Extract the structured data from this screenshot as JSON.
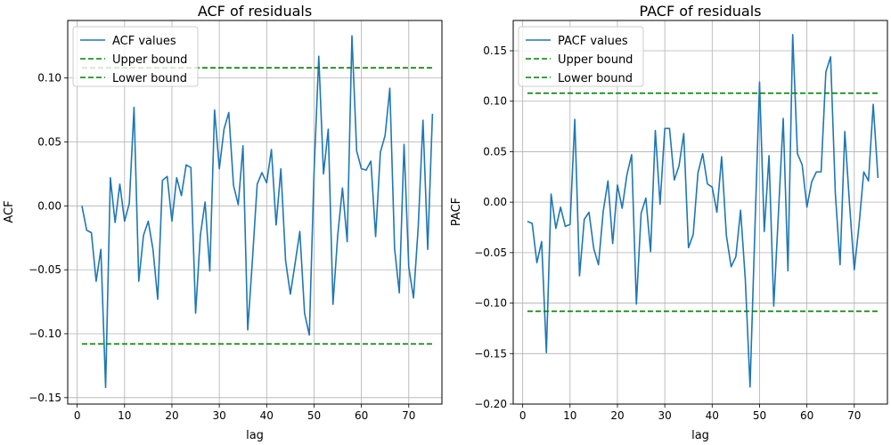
{
  "chart_data": [
    {
      "type": "line",
      "title": "ACF of residuals",
      "xlabel": "lag",
      "ylabel": "ACF",
      "xlim": [
        -2,
        77
      ],
      "ylim": [
        -0.155,
        0.145
      ],
      "xticks": [
        0,
        10,
        20,
        30,
        40,
        50,
        60,
        70
      ],
      "yticks": [
        -0.15,
        -0.1,
        -0.05,
        0.0,
        0.05,
        0.1
      ],
      "ytick_labels": [
        "−0.15",
        "−0.10",
        "−0.05",
        "0.00",
        "0.05",
        "0.10"
      ],
      "grid": true,
      "legend_position": "top-left",
      "series": [
        {
          "name": "ACF values",
          "color": "#1f77b4",
          "style": "solid",
          "x": [
            1,
            2,
            3,
            4,
            5,
            6,
            7,
            8,
            9,
            10,
            11,
            12,
            13,
            14,
            15,
            16,
            17,
            18,
            19,
            20,
            21,
            22,
            23,
            24,
            25,
            26,
            27,
            28,
            29,
            30,
            31,
            32,
            33,
            34,
            35,
            36,
            37,
            38,
            39,
            40,
            41,
            42,
            43,
            44,
            45,
            46,
            47,
            48,
            49,
            50,
            51,
            52,
            53,
            54,
            55,
            56,
            57,
            58,
            59,
            60,
            61,
            62,
            63,
            64,
            65,
            66,
            67,
            68,
            69,
            70,
            71,
            72,
            73,
            74,
            75
          ],
          "values": [
            0.0,
            -0.019,
            -0.021,
            -0.059,
            -0.034,
            -0.142,
            0.022,
            -0.013,
            0.017,
            -0.012,
            0.002,
            0.077,
            -0.059,
            -0.023,
            -0.012,
            -0.034,
            -0.073,
            0.02,
            0.023,
            -0.012,
            0.022,
            0.008,
            0.032,
            0.03,
            -0.084,
            -0.023,
            0.003,
            -0.051,
            0.075,
            0.029,
            0.06,
            0.073,
            0.016,
            0.001,
            0.047,
            -0.097,
            -0.042,
            0.017,
            0.026,
            0.018,
            0.044,
            -0.015,
            0.029,
            -0.043,
            -0.069,
            -0.045,
            -0.02,
            -0.084,
            -0.101,
            0.026,
            0.117,
            0.025,
            0.06,
            -0.077,
            -0.023,
            0.014,
            -0.028,
            0.133,
            0.043,
            0.029,
            0.028,
            0.035,
            -0.024,
            0.042,
            0.055,
            0.092,
            -0.033,
            -0.068,
            0.048,
            -0.048,
            -0.072,
            -0.016,
            0.067,
            -0.034,
            0.072
          ]
        },
        {
          "name": "Upper bound",
          "color": "#008000",
          "style": "dashed",
          "x": [
            1,
            75
          ],
          "values": [
            0.108,
            0.108
          ]
        },
        {
          "name": "Lower bound",
          "color": "#008000",
          "style": "dashed",
          "x": [
            1,
            75
          ],
          "values": [
            -0.108,
            -0.108
          ]
        }
      ]
    },
    {
      "type": "line",
      "title": "PACF of residuals",
      "xlabel": "lag",
      "ylabel": "PACF",
      "xlim": [
        -2,
        77
      ],
      "ylim": [
        -0.2,
        0.18
      ],
      "xticks": [
        0,
        10,
        20,
        30,
        40,
        50,
        60,
        70
      ],
      "yticks": [
        -0.2,
        -0.15,
        -0.1,
        -0.05,
        0.0,
        0.05,
        0.1,
        0.15
      ],
      "ytick_labels": [
        "−0.20",
        "−0.15",
        "−0.10",
        "−0.05",
        "0.00",
        "0.05",
        "0.10",
        "0.15"
      ],
      "grid": true,
      "legend_position": "top-left",
      "series": [
        {
          "name": "PACF values",
          "color": "#1f77b4",
          "style": "solid",
          "x": [
            1,
            2,
            3,
            4,
            5,
            6,
            7,
            8,
            9,
            10,
            11,
            12,
            13,
            14,
            15,
            16,
            17,
            18,
            19,
            20,
            21,
            22,
            23,
            24,
            25,
            26,
            27,
            28,
            29,
            30,
            31,
            32,
            33,
            34,
            35,
            36,
            37,
            38,
            39,
            40,
            41,
            42,
            43,
            44,
            45,
            46,
            47,
            48,
            49,
            50,
            51,
            52,
            53,
            54,
            55,
            56,
            57,
            58,
            59,
            60,
            61,
            62,
            63,
            64,
            65,
            66,
            67,
            68,
            69,
            70,
            71,
            72,
            73,
            74,
            75
          ],
          "values": [
            -0.019,
            -0.021,
            -0.06,
            -0.039,
            -0.149,
            0.008,
            -0.026,
            -0.005,
            -0.024,
            -0.022,
            0.082,
            -0.073,
            -0.017,
            -0.01,
            -0.046,
            -0.062,
            -0.009,
            0.021,
            -0.041,
            0.017,
            -0.006,
            0.027,
            0.047,
            -0.101,
            -0.011,
            0.004,
            -0.049,
            0.071,
            -0.002,
            0.073,
            0.073,
            0.022,
            0.036,
            0.068,
            -0.045,
            -0.032,
            0.029,
            0.048,
            0.018,
            0.015,
            -0.01,
            0.045,
            -0.033,
            -0.064,
            -0.054,
            -0.008,
            -0.077,
            -0.183,
            -0.03,
            0.119,
            -0.029,
            0.046,
            -0.103,
            -0.01,
            0.083,
            -0.068,
            0.166,
            0.048,
            0.037,
            -0.005,
            0.02,
            0.03,
            0.03,
            0.129,
            0.144,
            0.009,
            -0.062,
            0.07,
            -0.002,
            -0.067,
            -0.023,
            0.03,
            0.021,
            0.097,
            0.024
          ]
        },
        {
          "name": "Upper bound",
          "color": "#008000",
          "style": "dashed",
          "x": [
            1,
            75
          ],
          "values": [
            0.108,
            0.108
          ]
        },
        {
          "name": "Lower bound",
          "color": "#008000",
          "style": "dashed",
          "x": [
            1,
            75
          ],
          "values": [
            -0.108,
            -0.108
          ]
        }
      ]
    }
  ]
}
